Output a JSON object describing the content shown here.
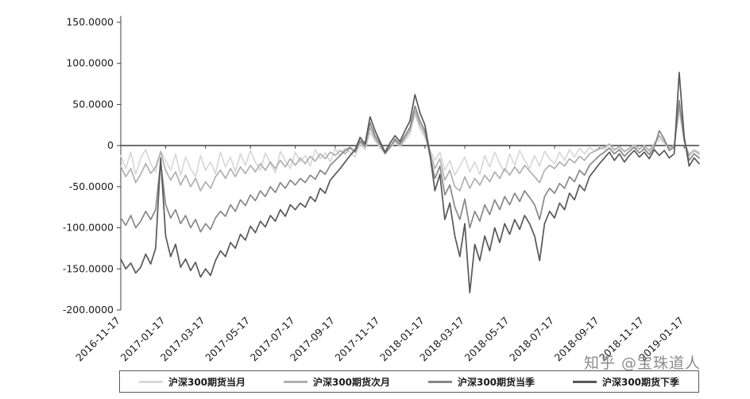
{
  "watermark": {
    "text": "知乎 @宝珠道人"
  },
  "chart_data": {
    "type": "line",
    "title": "",
    "xlabel": "",
    "ylabel": "",
    "grid": false,
    "legend_position": "bottom",
    "ylim": [
      -200,
      150
    ],
    "x_description": "one point per week, week 0 = 2016-11-17, through week 116",
    "x_total_weeks": 116,
    "y_ticks": [
      {
        "value": 150,
        "label": "150.0000"
      },
      {
        "value": 100,
        "label": "100.0000"
      },
      {
        "value": 50,
        "label": "50.0000"
      },
      {
        "value": 0,
        "label": "0"
      },
      {
        "value": -50,
        "label": "-50.0000"
      },
      {
        "value": -100,
        "label": "-100.0000"
      },
      {
        "value": -150,
        "label": "-150.0000"
      },
      {
        "value": -200,
        "label": "-200.0000"
      }
    ],
    "x_ticks": [
      {
        "week": 0,
        "label": "2016-11-17"
      },
      {
        "week": 9,
        "label": "2017-01-17"
      },
      {
        "week": 17,
        "label": "2017-03-17"
      },
      {
        "week": 26,
        "label": "2017-05-17"
      },
      {
        "week": 35,
        "label": "2017-07-17"
      },
      {
        "week": 43,
        "label": "2017-09-17"
      },
      {
        "week": 52,
        "label": "2017-11-17"
      },
      {
        "week": 61,
        "label": "2018-01-17"
      },
      {
        "week": 69,
        "label": "2018-03-17"
      },
      {
        "week": 78,
        "label": "2018-05-17"
      },
      {
        "week": 87,
        "label": "2018-07-17"
      },
      {
        "week": 96,
        "label": "2018-09-17"
      },
      {
        "week": 105,
        "label": "2018-11-17"
      },
      {
        "week": 113,
        "label": "2019-01-17"
      }
    ],
    "series": [
      {
        "id": "current-month",
        "name": "沪深300期货当月",
        "color": "#d8d8d8",
        "values": [
          -12,
          -28,
          -8,
          -35,
          -15,
          -5,
          -22,
          -32,
          -6,
          -18,
          -30,
          -10,
          -36,
          -14,
          -28,
          -38,
          -12,
          -30,
          -20,
          -34,
          -8,
          -26,
          -14,
          -32,
          -10,
          -24,
          -6,
          -20,
          -30,
          -9,
          -22,
          -33,
          -7,
          -18,
          -28,
          -8,
          -20,
          -12,
          -25,
          -5,
          -16,
          -9,
          -20,
          -4,
          -12,
          -3,
          -8,
          -14,
          2,
          -5,
          16,
          6,
          -2,
          -10,
          -3,
          4,
          -1,
          6,
          14,
          38,
          20,
          10,
          -5,
          -18,
          -8,
          -30,
          -18,
          -36,
          -25,
          -14,
          -32,
          -20,
          -35,
          -12,
          -26,
          -8,
          -22,
          -32,
          -10,
          -24,
          -6,
          -18,
          -28,
          -12,
          -25,
          -7,
          -16,
          -22,
          -8,
          -18,
          -5,
          -14,
          -3,
          -10,
          -2,
          -7,
          -1,
          -5,
          1,
          -6,
          -2,
          -8,
          -4,
          0,
          -5,
          -1,
          -7,
          1,
          8,
          3,
          -4,
          -1,
          42,
          4,
          -10,
          -5,
          -8
        ]
      },
      {
        "id": "next-month",
        "name": "沪深300期货次月",
        "color": "#b0b0b0",
        "values": [
          -25,
          -38,
          -28,
          -45,
          -35,
          -22,
          -34,
          -26,
          -8,
          -30,
          -42,
          -32,
          -48,
          -36,
          -50,
          -40,
          -55,
          -44,
          -52,
          -38,
          -30,
          -40,
          -28,
          -38,
          -26,
          -34,
          -24,
          -32,
          -22,
          -30,
          -20,
          -28,
          -18,
          -26,
          -16,
          -24,
          -15,
          -22,
          -13,
          -19,
          -10,
          -16,
          -8,
          -12,
          -6,
          -10,
          -3,
          -8,
          4,
          -2,
          22,
          8,
          0,
          -8,
          -1,
          6,
          0,
          9,
          18,
          42,
          25,
          14,
          -8,
          -28,
          -16,
          -42,
          -30,
          -50,
          -55,
          -38,
          -52,
          -40,
          -48,
          -36,
          -44,
          -32,
          -40,
          -28,
          -36,
          -26,
          -34,
          -24,
          -31,
          -38,
          -45,
          -30,
          -24,
          -28,
          -20,
          -25,
          -16,
          -21,
          -13,
          -18,
          -10,
          -7,
          -4,
          -2,
          2,
          -5,
          -1,
          -7,
          -3,
          1,
          -4,
          0,
          -6,
          2,
          12,
          5,
          -3,
          0,
          48,
          6,
          -12,
          -6,
          -10
        ]
      },
      {
        "id": "current-quarter",
        "name": "沪深300期货当季",
        "color": "#878787",
        "values": [
          -88,
          -97,
          -85,
          -100,
          -92,
          -80,
          -90,
          -78,
          -20,
          -72,
          -88,
          -78,
          -95,
          -85,
          -100,
          -90,
          -105,
          -95,
          -102,
          -88,
          -80,
          -86,
          -72,
          -80,
          -66,
          -73,
          -60,
          -67,
          -55,
          -62,
          -50,
          -57,
          -45,
          -52,
          -42,
          -48,
          -40,
          -45,
          -36,
          -41,
          -30,
          -35,
          -24,
          -18,
          -12,
          -6,
          -2,
          -8,
          6,
          0,
          28,
          12,
          2,
          -10,
          -2,
          8,
          2,
          12,
          22,
          48,
          30,
          18,
          -12,
          -40,
          -25,
          -60,
          -48,
          -75,
          -90,
          -65,
          -100,
          -80,
          -92,
          -72,
          -84,
          -66,
          -78,
          -62,
          -72,
          -58,
          -68,
          -55,
          -63,
          -72,
          -90,
          -62,
          -52,
          -58,
          -46,
          -52,
          -38,
          -44,
          -30,
          -36,
          -24,
          -18,
          -12,
          -8,
          -3,
          -10,
          -5,
          -13,
          -7,
          -2,
          -9,
          -4,
          -11,
          -2,
          18,
          8,
          -6,
          -2,
          55,
          8,
          -18,
          -10,
          -15
        ]
      },
      {
        "id": "next-quarter",
        "name": "沪深300期货下季",
        "color": "#585858",
        "values": [
          -138,
          -150,
          -143,
          -155,
          -148,
          -132,
          -144,
          -125,
          -15,
          -110,
          -135,
          -120,
          -148,
          -138,
          -152,
          -142,
          -160,
          -150,
          -158,
          -140,
          -128,
          -135,
          -118,
          -125,
          -108,
          -115,
          -98,
          -106,
          -92,
          -99,
          -85,
          -92,
          -78,
          -86,
          -72,
          -78,
          -70,
          -75,
          -62,
          -68,
          -52,
          -58,
          -42,
          -35,
          -28,
          -20,
          -12,
          -5,
          10,
          2,
          35,
          18,
          5,
          -8,
          3,
          12,
          5,
          18,
          30,
          62,
          40,
          25,
          -10,
          -55,
          -35,
          -90,
          -70,
          -110,
          -135,
          -95,
          -179,
          -120,
          -140,
          -110,
          -128,
          -100,
          -118,
          -95,
          -108,
          -90,
          -102,
          -85,
          -95,
          -110,
          -140,
          -95,
          -80,
          -88,
          -70,
          -78,
          -58,
          -66,
          -48,
          -55,
          -38,
          -30,
          -22,
          -15,
          -8,
          -18,
          -10,
          -20,
          -12,
          -6,
          -14,
          -8,
          -16,
          -5,
          -12,
          -6,
          -15,
          -10,
          89,
          10,
          -25,
          -15,
          -22
        ]
      }
    ]
  }
}
